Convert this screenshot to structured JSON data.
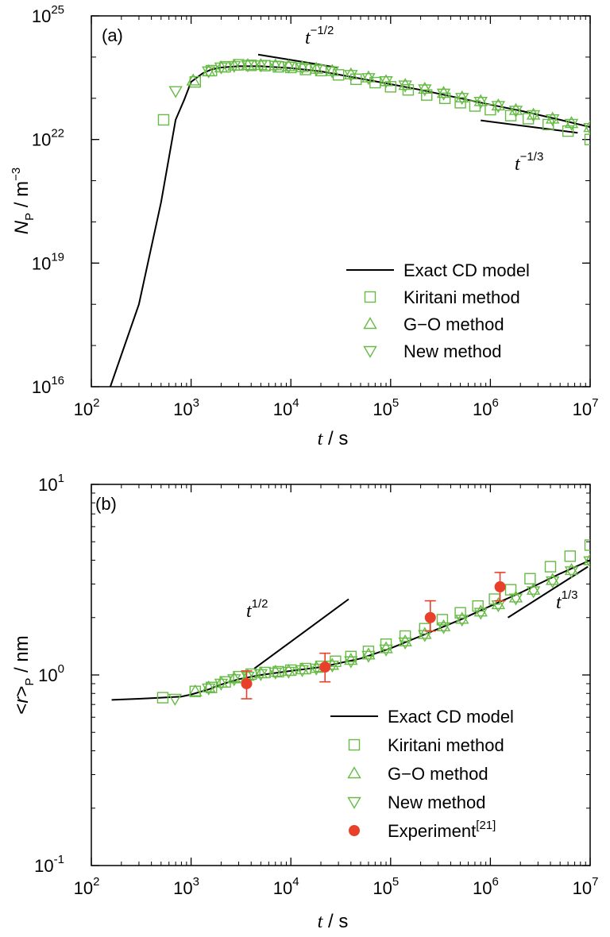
{
  "colors": {
    "model": "#000000",
    "simulation": "#66bb44",
    "experiment": "#e8402a"
  },
  "chart_data": [
    {
      "type": "scatter",
      "panel_label": "(a)",
      "x_scale": "log",
      "y_scale": "log",
      "xlim": [
        100,
        10000000
      ],
      "ylim": [
        1e+16,
        1e+25
      ],
      "x_ticks": [
        {
          "v": 100,
          "mant": "10",
          "exp": "2"
        },
        {
          "v": 1000,
          "mant": "10",
          "exp": "3"
        },
        {
          "v": 10000,
          "mant": "10",
          "exp": "4"
        },
        {
          "v": 100000,
          "mant": "10",
          "exp": "5"
        },
        {
          "v": 1000000,
          "mant": "10",
          "exp": "6"
        },
        {
          "v": 10000000,
          "mant": "10",
          "exp": "7"
        }
      ],
      "y_ticks": [
        {
          "v": 1e+16,
          "mant": "10",
          "exp": "16"
        },
        {
          "v": 1e+19,
          "mant": "10",
          "exp": "19"
        },
        {
          "v": 1e+22,
          "mant": "10",
          "exp": "22"
        },
        {
          "v": 1e+25,
          "mant": "10",
          "exp": "25"
        }
      ],
      "xlabel": {
        "main": "t",
        "rest": " / s"
      },
      "ylabel": {
        "main": "N",
        "sub": "P",
        "rest": " / m",
        "sup": "−3"
      },
      "legend": [
        "Exact CD model",
        "Kiritani method",
        "G−O method",
        "New method"
      ],
      "slope_labels": [
        {
          "base": "t",
          "sup": "−1/2"
        },
        {
          "base": "t",
          "sup": "−1/3"
        }
      ],
      "slope_lines": [
        {
          "x": [
            4700,
            29000
          ],
          "y": [
            1.15e+24,
            5.6e+23
          ]
        },
        {
          "x": [
            800000,
            7500000
          ],
          "y": [
            2.9e+22,
            1.45e+22
          ]
        }
      ],
      "series": [
        {
          "name": "Exact CD model",
          "marker": "line",
          "x": [
            155,
            300,
            500,
            700,
            850,
            1000,
            1300,
            1600,
            2000,
            3000,
            5000,
            8000,
            10000,
            20000,
            50000,
            100000,
            200000,
            500000,
            1000000,
            2000000,
            5000000,
            10000000
          ],
          "y": [
            1e+16,
            1e+18,
            3e+20,
            3e+22,
            9e+22,
            2.5e+23,
            4e+23,
            5e+23,
            5.6e+23,
            6e+23,
            6e+23,
            5.6e+23,
            5.4e+23,
            4.5e+23,
            3e+23,
            2.2e+23,
            1.6e+23,
            1e+23,
            7e+22,
            5e+22,
            3e+22,
            2e+22
          ]
        },
        {
          "name": "Kiritani method",
          "marker": "square",
          "x": [
            530,
            1100,
            1600,
            2200,
            3000,
            4000,
            5500,
            7500,
            10000,
            14000,
            20000,
            30000,
            45000,
            70000,
            100000,
            150000,
            230000,
            350000,
            500000,
            700000,
            1000000,
            1600000,
            2400000,
            3800000,
            6000000,
            10000000
          ],
          "y": [
            3e+22,
            2.5e+23,
            4.7e+23,
            5.8e+23,
            6.5e+23,
            6.3e+23,
            6.2e+23,
            5.8e+23,
            5.6e+23,
            5e+23,
            4.7e+23,
            3.7e+23,
            2.9e+23,
            2.4e+23,
            1.9e+23,
            1.6e+23,
            1.2e+23,
            1e+23,
            7.8e+22,
            6.5e+22,
            5.3e+22,
            3.8e+22,
            3.2e+22,
            2.3e+22,
            1.6e+22,
            1e+22
          ]
        },
        {
          "name": "G−O method",
          "marker": "triangle-up",
          "x": [
            1050,
            1500,
            2000,
            2700,
            3700,
            5000,
            7000,
            9500,
            13000,
            18000,
            26000,
            40000,
            60000,
            90000,
            140000,
            220000,
            340000,
            520000,
            800000,
            1200000,
            1800000,
            2700000,
            4200000,
            6500000,
            10000000
          ],
          "y": [
            2.7e+23,
            4.5e+23,
            5.6e+23,
            6.2e+23,
            6.4e+23,
            6.4e+23,
            6.3e+23,
            6e+23,
            5.7e+23,
            5.2e+23,
            4.6e+23,
            3.8e+23,
            3.2e+23,
            2.6e+23,
            2.1e+23,
            1.7e+23,
            1.35e+23,
            1.05e+23,
            8.5e+22,
            6.7e+22,
            5.2e+22,
            4e+22,
            3.2e+22,
            2.5e+22,
            2e+22
          ]
        },
        {
          "name": "New method",
          "marker": "triangle-down",
          "x": [
            700,
            1500,
            2000,
            2700,
            3700,
            5000,
            7000,
            9500,
            13000,
            18000,
            26000,
            40000,
            60000,
            90000,
            140000,
            220000,
            340000,
            520000,
            800000,
            1200000,
            1800000,
            2700000,
            4200000,
            6500000,
            10000000
          ],
          "y": [
            1.5e+23,
            4.5e+23,
            5.6e+23,
            6.1e+23,
            6.3e+23,
            6.3e+23,
            6.2e+23,
            5.9e+23,
            5.6e+23,
            5.1e+23,
            4.5e+23,
            3.7e+23,
            3.1e+23,
            2.6e+23,
            2.05e+23,
            1.65e+23,
            1.3e+23,
            1.02e+23,
            8.2e+22,
            6.5e+22,
            5e+22,
            3.9e+22,
            3.1e+22,
            2.4e+22,
            1.9e+22
          ]
        }
      ]
    },
    {
      "type": "scatter",
      "panel_label": "(b)",
      "x_scale": "log",
      "y_scale": "log",
      "xlim": [
        100,
        10000000
      ],
      "ylim": [
        0.1,
        10
      ],
      "x_ticks": [
        {
          "v": 100,
          "mant": "10",
          "exp": "2"
        },
        {
          "v": 1000,
          "mant": "10",
          "exp": "3"
        },
        {
          "v": 10000,
          "mant": "10",
          "exp": "4"
        },
        {
          "v": 100000,
          "mant": "10",
          "exp": "5"
        },
        {
          "v": 1000000,
          "mant": "10",
          "exp": "6"
        },
        {
          "v": 10000000,
          "mant": "10",
          "exp": "7"
        }
      ],
      "y_ticks": [
        {
          "v": 0.1,
          "mant": "10",
          "exp": "-1"
        },
        {
          "v": 1,
          "mant": "10",
          "exp": "0"
        },
        {
          "v": 10,
          "mant": "10",
          "exp": "1"
        }
      ],
      "xlabel": {
        "main": "t",
        "rest": " / s"
      },
      "ylabel": {
        "pre": "<",
        "main": "r",
        "post": ">",
        "sub": "P",
        "rest": " / nm"
      },
      "legend": [
        "Exact CD model",
        "Kiritani method",
        "G−O method",
        "New method",
        "Experiment"
      ],
      "legend_ref": "[21]",
      "slope_labels": [
        {
          "base": "t",
          "sup": "1/2"
        },
        {
          "base": "t",
          "sup": "1/3"
        }
      ],
      "slope_lines": [
        {
          "x": [
            4300,
            38000
          ],
          "y": [
            1.08,
            2.5
          ]
        },
        {
          "x": [
            1500000,
            9500000
          ],
          "y": [
            2.0,
            3.7
          ]
        }
      ],
      "series": [
        {
          "name": "Exact CD model",
          "marker": "line",
          "x": [
            160,
            300,
            500,
            800,
            1000,
            1500,
            2000,
            3000,
            5000,
            10000,
            20000,
            50000,
            100000,
            200000,
            500000,
            1000000,
            2000000,
            5000000,
            10000000
          ],
          "y": [
            0.74,
            0.75,
            0.76,
            0.77,
            0.79,
            0.84,
            0.89,
            0.95,
            1.0,
            1.05,
            1.1,
            1.22,
            1.38,
            1.6,
            1.95,
            2.3,
            2.7,
            3.4,
            4.0
          ]
        },
        {
          "name": "Kiritani method",
          "marker": "square",
          "x": [
            520,
            1100,
            1600,
            2200,
            3000,
            4000,
            5500,
            7500,
            10000,
            14000,
            20000,
            28000,
            40000,
            60000,
            90000,
            140000,
            220000,
            330000,
            500000,
            750000,
            1100000,
            1600000,
            2500000,
            4000000,
            6300000,
            10000000
          ],
          "y": [
            0.76,
            0.82,
            0.86,
            0.92,
            0.98,
            1.01,
            1.03,
            1.04,
            1.06,
            1.08,
            1.11,
            1.18,
            1.25,
            1.33,
            1.45,
            1.6,
            1.75,
            1.95,
            2.12,
            2.3,
            2.5,
            2.8,
            3.2,
            3.7,
            4.2,
            4.8
          ]
        },
        {
          "name": "G−O method",
          "marker": "triangle-up",
          "x": [
            1100,
            1500,
            2000,
            2700,
            3700,
            5000,
            7000,
            9500,
            13000,
            18000,
            26000,
            40000,
            60000,
            90000,
            140000,
            220000,
            340000,
            520000,
            800000,
            1200000,
            1800000,
            2700000,
            4200000,
            6500000,
            10000000
          ],
          "y": [
            0.82,
            0.86,
            0.91,
            0.96,
            0.99,
            1.02,
            1.04,
            1.05,
            1.07,
            1.09,
            1.13,
            1.2,
            1.28,
            1.38,
            1.5,
            1.64,
            1.8,
            1.97,
            2.15,
            2.35,
            2.55,
            2.8,
            3.15,
            3.55,
            4.0
          ]
        },
        {
          "name": "New method",
          "marker": "triangle-down",
          "x": [
            690,
            1500,
            2000,
            2700,
            3700,
            5000,
            7000,
            9500,
            13000,
            18000,
            26000,
            40000,
            60000,
            90000,
            140000,
            220000,
            340000,
            520000,
            800000,
            1200000,
            1800000,
            2700000,
            4200000,
            6500000,
            10000000
          ],
          "y": [
            0.75,
            0.85,
            0.9,
            0.95,
            0.98,
            1.01,
            1.03,
            1.04,
            1.06,
            1.08,
            1.12,
            1.18,
            1.26,
            1.36,
            1.48,
            1.62,
            1.78,
            1.95,
            2.12,
            2.32,
            2.52,
            2.75,
            3.1,
            3.5,
            3.95
          ]
        },
        {
          "name": "Experiment",
          "marker": "circle",
          "x": [
            3600,
            22000,
            250000,
            1250000
          ],
          "y": [
            0.9,
            1.1,
            2.0,
            2.9
          ],
          "err_low": [
            0.75,
            0.92,
            1.7,
            2.45
          ],
          "err_high": [
            1.05,
            1.3,
            2.45,
            3.45
          ]
        }
      ]
    }
  ]
}
